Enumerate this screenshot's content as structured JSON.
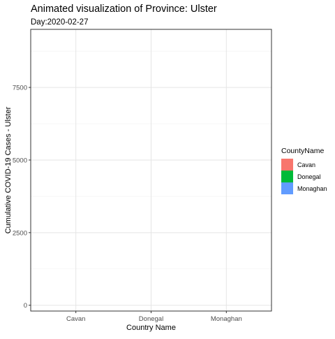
{
  "chart_data": {
    "type": "bar",
    "title": "Animated visualization of Province: Ulster",
    "subtitle": "Day:2020-02-27",
    "xlabel": "Country Name",
    "ylabel": "Cumulative COVID-19 Cases - Ulster",
    "categories": [
      "Cavan",
      "Donegal",
      "Monaghan"
    ],
    "values": [
      0,
      0,
      0
    ],
    "ylim": [
      -200,
      9500
    ],
    "yticks": [
      0,
      2500,
      5000,
      7500
    ],
    "ytick_labels": [
      "0",
      "2500",
      "5000",
      "7500"
    ],
    "grid": true,
    "legend": {
      "title": "CountyName",
      "position": "right",
      "entries": [
        {
          "label": "Cavan",
          "color": "#F8766D"
        },
        {
          "label": "Donegal",
          "color": "#00BA38"
        },
        {
          "label": "Monaghan",
          "color": "#619CFF"
        }
      ]
    }
  }
}
